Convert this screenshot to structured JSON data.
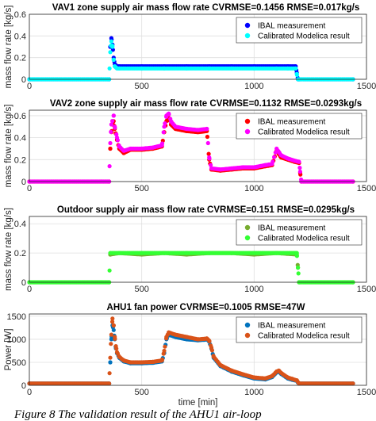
{
  "caption": "Figure 8 The validation result of the AHU1 air-loop",
  "chart_data": [
    {
      "type": "scatter",
      "title": "VAV1 zone supply air mass flow rate CVRMSE=0.1456 RMSE=0.017kg/s",
      "xlabel": "",
      "ylabel": "mass flow rate [kg/s]",
      "xlim": [
        0,
        1500
      ],
      "ylim": [
        0,
        0.6
      ],
      "xticks": [
        0,
        500,
        1000,
        1500
      ],
      "yticks": [
        0,
        0.2,
        0.4,
        0.6
      ],
      "xtick_labels": [
        "0",
        "500",
        "1000",
        "1500"
      ],
      "ytick_labels": [
        "0",
        "0.2",
        "0.4",
        "0.6"
      ],
      "legend_position": "top-right",
      "series": [
        {
          "name": "IBAL measurement",
          "color": "#0000ff",
          "x": [
            0,
            355,
            360,
            365,
            370,
            375,
            380,
            385,
            390,
            400,
            500,
            600,
            700,
            800,
            900,
            1000,
            1100,
            1150,
            1185,
            1190,
            1195,
            1200,
            1440
          ],
          "y": [
            0,
            0,
            0.3,
            0.38,
            0.32,
            0.2,
            0.14,
            0.13,
            0.12,
            0.12,
            0.12,
            0.12,
            0.12,
            0.12,
            0.12,
            0.12,
            0.12,
            0.12,
            0.12,
            0.06,
            0,
            0,
            0
          ]
        },
        {
          "name": "Calibrated Modelica result",
          "color": "#00ffff",
          "x": [
            0,
            355,
            360,
            365,
            370,
            375,
            380,
            385,
            390,
            400,
            500,
            600,
            700,
            800,
            900,
            1000,
            1100,
            1150,
            1185,
            1190,
            1195,
            1200,
            1440
          ],
          "y": [
            0,
            0,
            0.25,
            0.35,
            0.3,
            0.18,
            0.12,
            0.11,
            0.1,
            0.1,
            0.1,
            0.1,
            0.1,
            0.1,
            0.1,
            0.1,
            0.1,
            0.1,
            0.1,
            0.05,
            0,
            0,
            0
          ]
        }
      ]
    },
    {
      "type": "scatter",
      "title": "VAV2 zone supply air mass flow rate CVRMSE=0.1132 RMSE=0.0293kg/s",
      "xlabel": "",
      "ylabel": "mass flow rate [kg/s]",
      "xlim": [
        0,
        1500
      ],
      "ylim": [
        0,
        0.65
      ],
      "xticks": [
        0,
        500,
        1000,
        1500
      ],
      "yticks": [
        0,
        0.2,
        0.4,
        0.6
      ],
      "xtick_labels": [
        "0",
        "500",
        "1000",
        "1500"
      ],
      "ytick_labels": [
        "0",
        "0.2",
        "0.4",
        "0.6"
      ],
      "legend_position": "top-right",
      "series": [
        {
          "name": "IBAL measurement",
          "color": "#ff0000",
          "x": [
            0,
            355,
            360,
            365,
            375,
            380,
            390,
            400,
            420,
            450,
            500,
            550,
            590,
            600,
            610,
            620,
            630,
            650,
            700,
            750,
            790,
            800,
            810,
            850,
            900,
            950,
            1000,
            1050,
            1080,
            1100,
            1110,
            1120,
            1150,
            1180,
            1200,
            1205,
            1210,
            1440
          ],
          "y": [
            0,
            0,
            0.3,
            0.45,
            0.55,
            0.48,
            0.38,
            0.3,
            0.26,
            0.29,
            0.29,
            0.3,
            0.32,
            0.45,
            0.55,
            0.58,
            0.52,
            0.48,
            0.46,
            0.45,
            0.46,
            0.2,
            0.11,
            0.1,
            0.11,
            0.12,
            0.12,
            0.14,
            0.15,
            0.28,
            0.25,
            0.22,
            0.2,
            0.18,
            0.17,
            0.08,
            0,
            0
          ]
        },
        {
          "name": "Calibrated Modelica result",
          "color": "#ff00ff",
          "x": [
            0,
            355,
            360,
            365,
            375,
            380,
            390,
            400,
            420,
            450,
            500,
            550,
            590,
            600,
            610,
            620,
            630,
            650,
            700,
            750,
            790,
            800,
            810,
            850,
            900,
            950,
            1000,
            1050,
            1080,
            1100,
            1110,
            1120,
            1150,
            1180,
            1200,
            1205,
            1210,
            1440
          ],
          "y": [
            0,
            0,
            0.35,
            0.52,
            0.6,
            0.5,
            0.4,
            0.32,
            0.28,
            0.3,
            0.3,
            0.31,
            0.33,
            0.5,
            0.6,
            0.62,
            0.55,
            0.5,
            0.48,
            0.47,
            0.48,
            0.22,
            0.12,
            0.11,
            0.12,
            0.13,
            0.13,
            0.15,
            0.16,
            0.3,
            0.27,
            0.24,
            0.21,
            0.19,
            0.18,
            0.09,
            0,
            0
          ]
        }
      ]
    },
    {
      "type": "scatter",
      "title": "Outdoor supply air mass flow rate CVRMSE=0.151 RMSE=0.0295kg/s",
      "xlabel": "",
      "ylabel": "mass flow rate [kg/s]",
      "xlim": [
        0,
        1500
      ],
      "ylim": [
        0,
        0.45
      ],
      "xticks": [
        0,
        500,
        1000,
        1500
      ],
      "yticks": [
        0,
        0.2,
        0.4
      ],
      "xtick_labels": [
        "0",
        "500",
        "1000",
        "1500"
      ],
      "ytick_labels": [
        "0",
        "0.2",
        "0.4"
      ],
      "legend_position": "top-right",
      "series": [
        {
          "name": "IBAL measurement",
          "color": "#77ac30",
          "x": [
            0,
            355,
            360,
            400,
            500,
            600,
            700,
            800,
            900,
            1000,
            1100,
            1190,
            1195,
            1200,
            1440
          ],
          "y": [
            0,
            0,
            0.19,
            0.2,
            0.19,
            0.2,
            0.19,
            0.2,
            0.2,
            0.19,
            0.2,
            0.19,
            0.1,
            0,
            0
          ]
        },
        {
          "name": "Calibrated Modelica result",
          "color": "#33ff33",
          "x": [
            0,
            355,
            360,
            400,
            500,
            600,
            700,
            800,
            900,
            1000,
            1100,
            1190,
            1195,
            1200,
            1440
          ],
          "y": [
            0,
            0,
            0.2,
            0.2,
            0.2,
            0.2,
            0.2,
            0.2,
            0.2,
            0.2,
            0.2,
            0.2,
            0.1,
            0,
            0
          ]
        }
      ]
    },
    {
      "type": "scatter",
      "title": "AHU1 fan power CVRMSE=0.1005 RMSE=47W",
      "xlabel": "time [min]",
      "ylabel": "Power [W]",
      "xlim": [
        0,
        1500
      ],
      "ylim": [
        0,
        1550
      ],
      "xticks": [
        0,
        500,
        1000,
        1500
      ],
      "yticks": [
        0,
        500,
        1000,
        1500
      ],
      "xtick_labels": [
        "0",
        "500",
        "1000",
        "1500"
      ],
      "ytick_labels": [
        "0",
        "500",
        "1000",
        "1500"
      ],
      "legend_position": "top-right",
      "series": [
        {
          "name": "IBAL measurement",
          "color": "#0072bd",
          "x": [
            0,
            355,
            360,
            365,
            370,
            375,
            380,
            385,
            390,
            400,
            420,
            450,
            500,
            550,
            590,
            600,
            610,
            620,
            650,
            700,
            750,
            780,
            790,
            800,
            810,
            820,
            850,
            900,
            950,
            1000,
            1050,
            1080,
            1100,
            1110,
            1120,
            1150,
            1170,
            1180,
            1190,
            1195,
            1200,
            1440
          ],
          "y": [
            40,
            40,
            500,
            1000,
            1300,
            1200,
            1000,
            800,
            700,
            600,
            520,
            480,
            480,
            490,
            520,
            700,
            1000,
            1100,
            1050,
            1000,
            980,
            990,
            1000,
            950,
            800,
            600,
            420,
            300,
            220,
            150,
            130,
            180,
            280,
            300,
            250,
            150,
            120,
            110,
            100,
            60,
            40,
            40
          ]
        },
        {
          "name": "Calibrated Modelica result",
          "color": "#d95319",
          "x": [
            0,
            355,
            360,
            365,
            370,
            375,
            380,
            385,
            390,
            400,
            420,
            450,
            500,
            550,
            590,
            600,
            610,
            620,
            650,
            700,
            750,
            780,
            790,
            800,
            810,
            820,
            850,
            900,
            950,
            1000,
            1050,
            1080,
            1100,
            1110,
            1120,
            1150,
            1170,
            1180,
            1190,
            1195,
            1200,
            1440
          ],
          "y": [
            40,
            40,
            600,
            1100,
            1450,
            1300,
            1050,
            850,
            720,
            620,
            540,
            500,
            500,
            510,
            540,
            750,
            1050,
            1150,
            1100,
            1050,
            1000,
            1010,
            1020,
            970,
            820,
            620,
            440,
            320,
            240,
            170,
            150,
            200,
            300,
            320,
            270,
            170,
            140,
            120,
            110,
            70,
            40,
            40
          ]
        }
      ]
    }
  ]
}
